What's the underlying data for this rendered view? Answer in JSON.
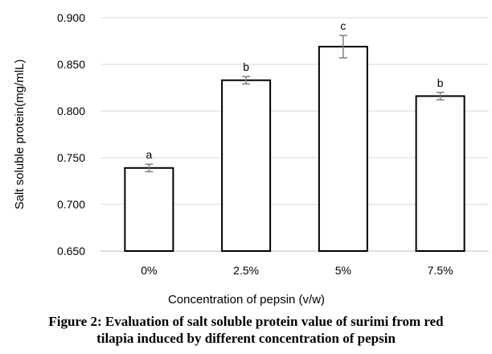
{
  "chart_data": {
    "type": "bar",
    "categories": [
      "0%",
      "2.5%",
      "5%",
      "7.5%"
    ],
    "values": [
      0.739,
      0.833,
      0.869,
      0.816
    ],
    "errors": [
      0.004,
      0.004,
      0.012,
      0.004
    ],
    "significance_letters": [
      "a",
      "b",
      "c",
      "b"
    ],
    "xlabel": "Concentration of pepsin (v/w)",
    "ylabel": "Salt soluble protein(mg/mlL)",
    "ylim": [
      0.65,
      0.9
    ],
    "yticks": [
      "0.650",
      "0.700",
      "0.750",
      "0.800",
      "0.850",
      "0.900"
    ],
    "grid": true,
    "bar_fill": "#ffffff",
    "bar_stroke": "#000000",
    "grid_color": "#d9d9d9",
    "error_color": "#7f7f7f"
  },
  "caption": {
    "line1": "Figure 2: Evaluation of salt soluble protein value of surimi from red",
    "line2": "tilapia induced by different concentration of pepsin"
  }
}
